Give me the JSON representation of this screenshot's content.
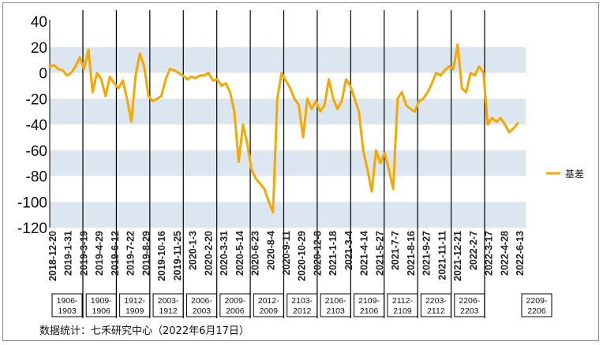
{
  "chart_data": {
    "type": "line",
    "title": "",
    "xlabel": "",
    "ylabel": "",
    "ylim": [
      -120,
      40
    ],
    "yticks": [
      40,
      20,
      0,
      -20,
      -40,
      -60,
      -80,
      -100,
      -120
    ],
    "shaded_bands": [
      [
        0,
        20
      ],
      [
        -40,
        -20
      ],
      [
        -80,
        -60
      ],
      [
        -120,
        -100
      ]
    ],
    "band_color": "#dce6f1",
    "line_color": "#f5a800",
    "legend_position": "right",
    "x_tick_labels": [
      "2018-12-20",
      "2019-1-31",
      "2019-3-19",
      "2019-4-29",
      "2019-6-12",
      "2019-7-22",
      "2019-8-29",
      "2019-10-16",
      "2019-11-25",
      "2020-1-3",
      "2020-2-20",
      "2020-3-31",
      "2020-5-14",
      "2020-6-23",
      "2020-8-4",
      "2020-9-11",
      "2020-10-29",
      "2020-12-8",
      "2021-1-18",
      "2021-3-4",
      "2021-4-14",
      "2021-5-27",
      "2021-7-7",
      "2021-8-16",
      "2021-9-27",
      "2021-11-11",
      "2021-12-21",
      "2022-2-7",
      "2022-3-17",
      "2022-4-28",
      "2022-6-13"
    ],
    "contract_periods": [
      {
        "label_top": "1906-",
        "label_bottom": "1903"
      },
      {
        "label_top": "1909-",
        "label_bottom": "1906"
      },
      {
        "label_top": "1912-",
        "label_bottom": "1909"
      },
      {
        "label_top": "2003-",
        "label_bottom": "1912"
      },
      {
        "label_top": "2006-",
        "label_bottom": "2003"
      },
      {
        "label_top": "2009-",
        "label_bottom": "2006"
      },
      {
        "label_top": "2012-",
        "label_bottom": "2009"
      },
      {
        "label_top": "2103-",
        "label_bottom": "2012"
      },
      {
        "label_top": "2106-",
        "label_bottom": "2103"
      },
      {
        "label_top": "2109-",
        "label_bottom": "2106"
      },
      {
        "label_top": "2112-",
        "label_bottom": "2109"
      },
      {
        "label_top": "2203-",
        "label_bottom": "2112"
      },
      {
        "label_top": "2206-",
        "label_bottom": "2203"
      },
      {
        "label_top": "2209-",
        "label_bottom": "2206"
      }
    ],
    "series": [
      {
        "name": "基差",
        "values": [
          5,
          6,
          3,
          2,
          -2,
          0,
          5,
          12,
          3,
          18,
          -15,
          0,
          -5,
          -18,
          -3,
          -8,
          -12,
          -6,
          -20,
          -38,
          -2,
          15,
          5,
          -18,
          -22,
          -20,
          -18,
          -5,
          3,
          2,
          0,
          -2,
          -5,
          -3,
          -4,
          -2,
          -2,
          0,
          -6,
          -5,
          -10,
          -8,
          -15,
          -30,
          -69,
          -40,
          -55,
          -75,
          -82,
          -86,
          -90,
          -100,
          -108,
          -20,
          0,
          -6,
          -12,
          -20,
          -25,
          -50,
          -20,
          -28,
          -22,
          -30,
          -25,
          -5,
          -20,
          -28,
          -22,
          -5,
          -10,
          -20,
          -30,
          -60,
          -75,
          -92,
          -60,
          -70,
          -62,
          -75,
          -90,
          -20,
          -15,
          -25,
          -28,
          -30,
          -22,
          -20,
          -15,
          -8,
          0,
          -2,
          2,
          5,
          3,
          22,
          -12,
          -15,
          0,
          -2,
          5,
          0,
          -40,
          -35,
          -38,
          -35,
          -40,
          -46,
          -43,
          -39
        ]
      }
    ]
  },
  "legend": {
    "label": "基差"
  },
  "source_note": "数据统计：七禾研究中心（2022年6月17日）"
}
